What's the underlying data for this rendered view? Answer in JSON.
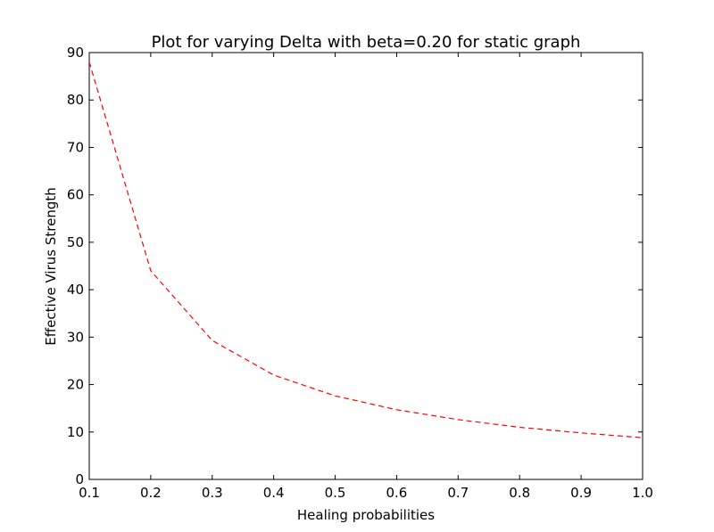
{
  "chart_data": {
    "type": "line",
    "title": "Plot for varying Delta with beta=0.20 for static graph",
    "xlabel": "Healing probabilities",
    "ylabel": "Effective Virus Strength",
    "xlim": [
      0.1,
      1.0
    ],
    "ylim": [
      0,
      90
    ],
    "xticks": [
      "0.1",
      "0.2",
      "0.3",
      "0.4",
      "0.5",
      "0.6",
      "0.7",
      "0.8",
      "0.9",
      "1.0"
    ],
    "yticks": [
      "0",
      "10",
      "20",
      "30",
      "40",
      "50",
      "60",
      "70",
      "80",
      "90"
    ],
    "grid": false,
    "series": [
      {
        "color": "#ff0000",
        "line_style": "dashed",
        "x": [
          0.1,
          0.2,
          0.3,
          0.4,
          0.5,
          0.6,
          0.7,
          0.8,
          0.9,
          1.0
        ],
        "y": [
          88.0,
          44.0,
          29.3,
          22.0,
          17.6,
          14.7,
          12.6,
          11.0,
          9.8,
          8.8
        ]
      }
    ]
  }
}
